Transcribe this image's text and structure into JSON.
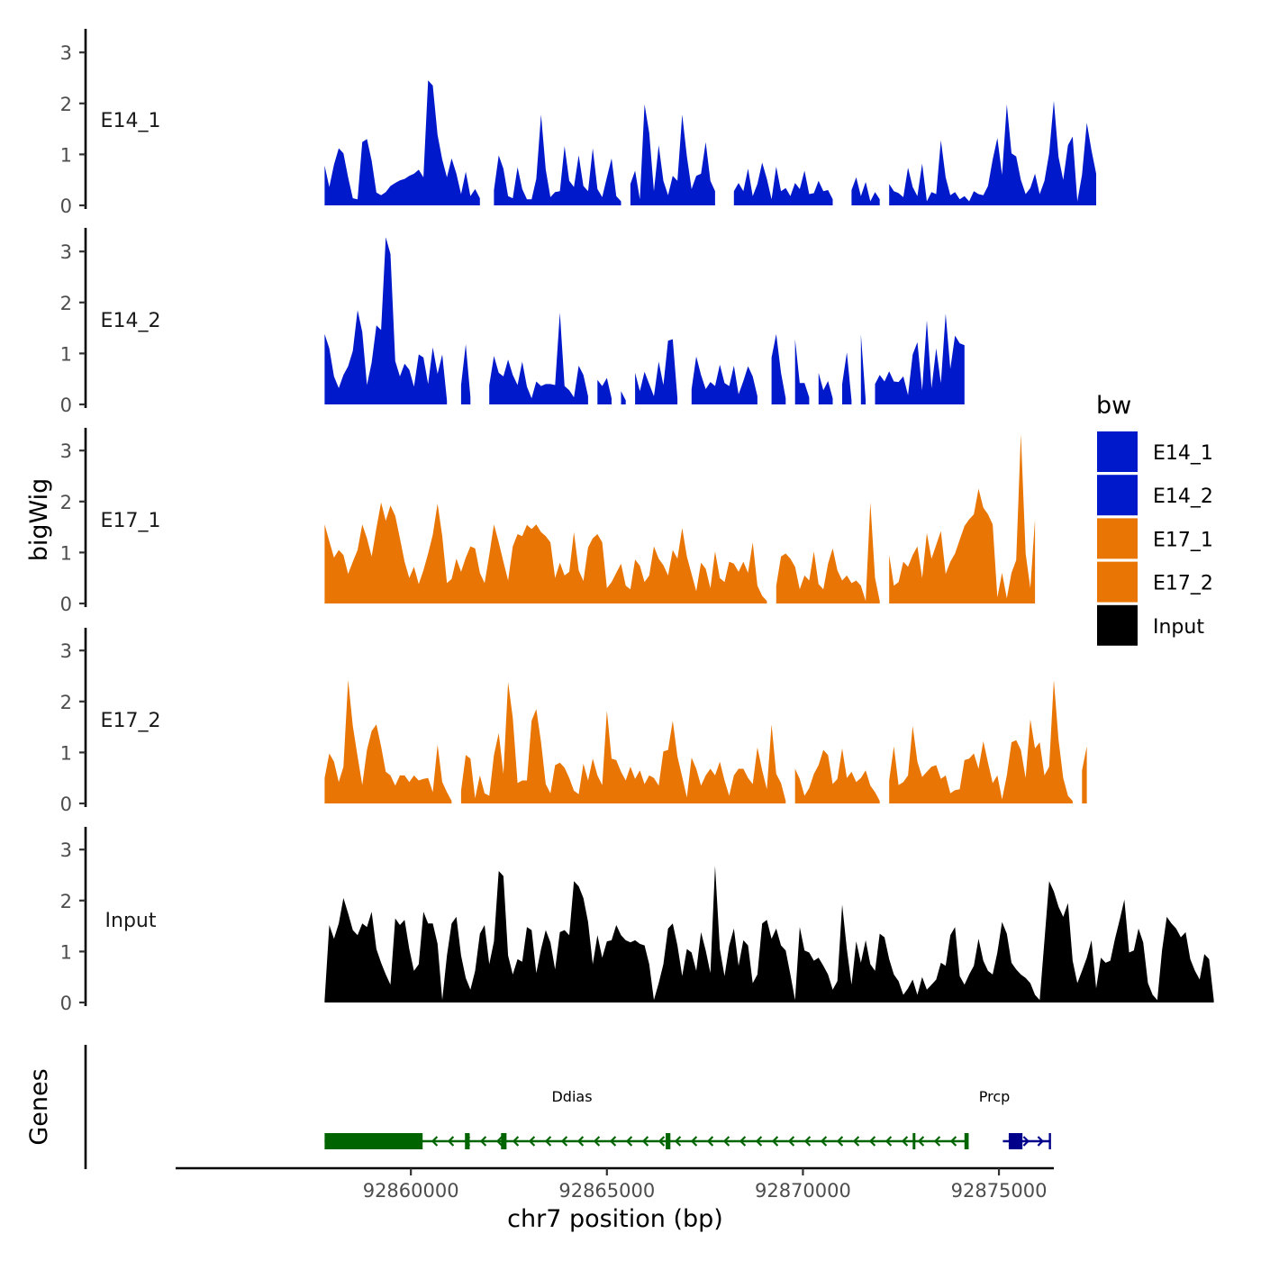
{
  "chart_data": {
    "type": "area",
    "title": "",
    "xlabel": "chr7 position (bp)",
    "ylabel": "bigWig",
    "genes_label": "Genes",
    "xlim": [
      92854000,
      92876400
    ],
    "ylim": [
      0,
      3.4
    ],
    "x_ticks": [
      92860000,
      92865000,
      92870000,
      92875000
    ],
    "x_tick_labels": [
      "92860000",
      "92865000",
      "92870000",
      "92875000"
    ],
    "y_ticks": [
      0,
      1,
      2,
      3
    ],
    "y_tick_labels": [
      "0",
      "1",
      "2",
      "3"
    ],
    "legend": {
      "title": "bw",
      "entries": [
        {
          "name": "E14_1",
          "color": "#0019CB"
        },
        {
          "name": "E14_2",
          "color": "#0019CB"
        },
        {
          "name": "E17_1",
          "color": "#E87504"
        },
        {
          "name": "E17_2",
          "color": "#E87504"
        },
        {
          "name": "Input",
          "color": "#000000"
        }
      ]
    },
    "x_start": 92857800,
    "x_step": 120,
    "series": [
      {
        "name": "E14_1",
        "color": "#0019CB",
        "values": [
          0.78,
          0.36,
          0.8,
          1.12,
          1.02,
          0.55,
          0.14,
          0.12,
          1.24,
          1.3,
          0.88,
          0.25,
          0.2,
          0.26,
          0.38,
          0.44,
          0.49,
          0.52,
          0.58,
          0.62,
          0.7,
          0.55,
          2.45,
          2.35,
          1.38,
          0.9,
          0.55,
          0.92,
          0.62,
          0.22,
          0.66,
          0.18,
          0.32,
          0.14,
          null,
          null,
          0.3,
          0.98,
          0.72,
          0.18,
          0.14,
          0.75,
          0.32,
          0.12,
          0.12,
          0.52,
          1.78,
          0.7,
          0.16,
          0.26,
          0.28,
          1.16,
          0.48,
          0.36,
          0.98,
          0.38,
          0.28,
          1.12,
          0.32,
          0.16,
          0.55,
          0.92,
          0.18,
          0.08,
          null,
          0.42,
          0.68,
          0.12,
          1.98,
          1.42,
          0.28,
          1.18,
          0.48,
          0.2,
          0.58,
          0.48,
          1.78,
          0.96,
          0.32,
          0.58,
          0.62,
          1.24,
          0.48,
          0.28,
          null,
          null,
          null,
          0.28,
          0.44,
          0.28,
          0.72,
          0.18,
          0.42,
          0.84,
          0.52,
          0.12,
          0.76,
          0.28,
          0.34,
          0.18,
          0.44,
          0.32,
          0.68,
          0.22,
          0.24,
          0.48,
          0.28,
          0.3,
          0.12,
          null,
          null,
          null,
          0.3,
          0.55,
          0.18,
          0.46,
          0.08,
          0.26,
          0.12,
          null,
          0.42,
          0.28,
          0.24,
          0.16,
          0.74,
          0.36,
          0.18,
          0.82,
          0.08,
          0.26,
          0.22,
          1.28,
          0.55,
          0.2,
          0.26,
          0.12,
          0.18,
          0.08,
          0.28,
          0.22,
          0.2,
          0.38,
          0.9,
          1.32,
          0.6,
          1.98,
          1.02,
          0.96,
          0.5,
          0.22,
          0.34,
          0.62,
          0.22,
          0.48,
          1.02,
          2.05,
          0.95,
          0.5,
          1.18,
          1.35,
          0.08,
          0.6,
          1.62,
          1.08,
          0.62
        ],
        "label": "E14_1"
      },
      {
        "name": "E14_2",
        "color": "#0019CB",
        "values": [
          1.38,
          1.1,
          0.55,
          0.32,
          0.58,
          0.75,
          1.05,
          1.85,
          1.42,
          0.38,
          0.82,
          1.55,
          1.46,
          3.28,
          2.95,
          0.85,
          0.55,
          0.8,
          0.68,
          0.35,
          0.98,
          0.92,
          0.4,
          1.12,
          0.6,
          0.98,
          0.08,
          null,
          null,
          0.38,
          1.18,
          0.14,
          null,
          null,
          null,
          0.38,
          0.95,
          0.62,
          0.55,
          0.88,
          0.58,
          0.38,
          0.84,
          0.35,
          0.12,
          0.45,
          0.36,
          0.4,
          0.4,
          0.38,
          1.8,
          0.36,
          0.28,
          0.14,
          0.76,
          0.58,
          0.16,
          null,
          0.48,
          0.36,
          0.52,
          0.12,
          null,
          0.26,
          0.08,
          null,
          0.62,
          0.26,
          0.64,
          0.4,
          0.16,
          0.84,
          0.38,
          1.25,
          1.28,
          0.12,
          null,
          null,
          0.3,
          0.94,
          0.58,
          0.3,
          0.44,
          0.36,
          0.78,
          0.42,
          0.36,
          0.76,
          0.2,
          0.46,
          0.75,
          0.55,
          0.16,
          null,
          null,
          0.92,
          1.38,
          0.62,
          0.12,
          null,
          1.28,
          0.42,
          0.42,
          0.14,
          null,
          0.62,
          0.28,
          0.46,
          0.12,
          null,
          0.4,
          1.02,
          0.08,
          null,
          1.38,
          0.08,
          null,
          0.4,
          0.58,
          0.45,
          0.65,
          0.45,
          0.44,
          0.55,
          0.18,
          0.98,
          1.22,
          0.28,
          1.65,
          0.32,
          1.1,
          0.42,
          1.78,
          0.7,
          1.35,
          1.2,
          1.16
        ],
        "label": "E14_2"
      },
      {
        "name": "E17_1",
        "color": "#E87504",
        "values": [
          1.55,
          1.22,
          0.9,
          1.05,
          0.95,
          0.58,
          0.82,
          1.05,
          1.55,
          1.28,
          0.92,
          1.48,
          1.98,
          1.62,
          1.92,
          1.72,
          1.28,
          0.82,
          0.5,
          0.72,
          0.38,
          0.65,
          0.98,
          1.35,
          1.96,
          1.32,
          0.4,
          0.48,
          0.88,
          0.62,
          0.9,
          1.12,
          1.08,
          0.6,
          0.4,
          0.95,
          1.55,
          1.2,
          0.82,
          0.45,
          1.12,
          1.36,
          1.32,
          1.54,
          1.46,
          1.55,
          1.4,
          1.32,
          1.2,
          0.5,
          0.8,
          0.55,
          0.62,
          1.4,
          0.65,
          0.44,
          1.1,
          1.28,
          1.36,
          1.2,
          0.3,
          0.42,
          0.6,
          0.78,
          0.35,
          0.28,
          0.86,
          0.74,
          0.42,
          0.55,
          1.12,
          0.88,
          0.75,
          0.55,
          1.05,
          0.88,
          1.48,
          0.92,
          0.58,
          0.24,
          0.8,
          0.68,
          0.3,
          1.02,
          0.5,
          0.42,
          0.82,
          0.78,
          0.62,
          0.82,
          0.6,
          1.2,
          0.35,
          0.15,
          0.05,
          null,
          0.35,
          0.92,
          0.98,
          0.88,
          0.72,
          0.28,
          0.55,
          0.45,
          1.02,
          0.38,
          0.28,
          0.78,
          1.08,
          0.65,
          0.45,
          0.55,
          0.4,
          0.45,
          0.35,
          0.05,
          1.98,
          0.5,
          0.05,
          null,
          0.95,
          0.35,
          0.42,
          0.82,
          0.72,
          0.95,
          1.12,
          0.5,
          1.38,
          0.88,
          1.15,
          1.42,
          0.58,
          0.82,
          0.98,
          1.25,
          1.52,
          1.65,
          1.75,
          2.25,
          1.88,
          1.75,
          1.55,
          0.12,
          0.6,
          0.1,
          0.6,
          0.85,
          3.32,
          0.98,
          0.3,
          1.65
        ],
        "label": "E17_1"
      },
      {
        "name": "E17_2",
        "color": "#E87504",
        "values": [
          0.5,
          0.98,
          0.82,
          0.42,
          0.72,
          2.42,
          1.52,
          0.92,
          0.36,
          1.05,
          1.42,
          1.55,
          1.12,
          0.62,
          0.55,
          0.35,
          0.55,
          0.55,
          0.42,
          0.55,
          0.45,
          0.48,
          0.5,
          0.22,
          1.15,
          0.42,
          0.22,
          0.05,
          null,
          0.25,
          0.95,
          0.88,
          0.1,
          0.55,
          0.2,
          0.15,
          0.95,
          1.38,
          0.58,
          2.38,
          1.68,
          0.4,
          0.45,
          0.45,
          1.62,
          1.85,
          1.2,
          0.38,
          0.2,
          0.75,
          0.8,
          0.7,
          0.5,
          0.25,
          0.18,
          0.78,
          0.45,
          0.88,
          0.55,
          0.36,
          1.82,
          0.88,
          0.85,
          0.62,
          0.45,
          0.72,
          0.48,
          0.65,
          0.38,
          0.55,
          0.5,
          0.35,
          1.02,
          1.05,
          1.62,
          0.92,
          0.52,
          0.12,
          0.9,
          0.68,
          0.35,
          0.55,
          0.68,
          0.55,
          0.82,
          0.45,
          0.15,
          0.55,
          0.68,
          0.68,
          0.5,
          0.38,
          1.1,
          0.65,
          0.28,
          1.55,
          0.58,
          0.4,
          0.05,
          null,
          0.68,
          0.48,
          0.15,
          0.3,
          0.58,
          0.75,
          1.05,
          0.95,
          0.38,
          0.48,
          1.08,
          0.5,
          0.62,
          0.42,
          0.5,
          0.65,
          0.35,
          0.22,
          0.05,
          null,
          0.45,
          1.12,
          0.36,
          0.42,
          0.55,
          1.52,
          0.82,
          0.52,
          0.62,
          0.72,
          0.75,
          0.48,
          0.55,
          0.2,
          0.26,
          0.28,
          0.85,
          0.88,
          0.98,
          0.68,
          1.22,
          0.8,
          0.4,
          0.55,
          0.08,
          0.55,
          1.2,
          1.24,
          1.05,
          0.5,
          1.65,
          1.08,
          1.2,
          0.55,
          0.72,
          2.42,
          1.25,
          0.5,
          0.15,
          0.05,
          null,
          0.65,
          1.12
        ]
      },
      {
        "name": "Input",
        "color": "#000000",
        "values": [
          0.05,
          1.52,
          1.25,
          1.55,
          2.05,
          1.75,
          1.42,
          1.32,
          1.55,
          1.48,
          1.78,
          1.05,
          0.78,
          0.55,
          0.35,
          1.65,
          1.52,
          1.62,
          1.05,
          0.62,
          0.75,
          1.78,
          1.55,
          1.55,
          1.15,
          0.05,
          0.92,
          1.55,
          1.68,
          0.92,
          0.48,
          0.25,
          0.62,
          1.35,
          1.52,
          0.75,
          1.2,
          2.58,
          2.48,
          0.92,
          0.55,
          0.85,
          0.8,
          1.48,
          1.42,
          0.58,
          1.05,
          1.42,
          1.18,
          0.65,
          1.38,
          1.42,
          1.32,
          2.38,
          2.28,
          2.05,
          1.58,
          0.75,
          1.32,
          0.88,
          1.2,
          1.22,
          1.52,
          1.32,
          1.22,
          1.18,
          1.22,
          1.15,
          1.12,
          0.75,
          0.05,
          0.38,
          0.75,
          1.45,
          1.55,
          1.12,
          0.52,
          1.05,
          0.98,
          0.62,
          1.38,
          1.02,
          0.58,
          2.68,
          1.05,
          0.52,
          1.12,
          1.45,
          0.72,
          1.22,
          1.12,
          0.38,
          0.55,
          1.55,
          1.62,
          1.25,
          1.45,
          1.12,
          1.02,
          0.55,
          0.05,
          1.48,
          1.02,
          0.98,
          0.82,
          0.88,
          0.72,
          0.55,
          0.25,
          0.42,
          1.92,
          1.05,
          0.35,
          1.2,
          0.78,
          1.22,
          0.75,
          0.62,
          1.35,
          1.28,
          0.85,
          0.55,
          0.42,
          0.15,
          0.28,
          0.45,
          0.15,
          0.5,
          0.25,
          0.35,
          0.45,
          0.78,
          0.72,
          1.32,
          1.48,
          0.52,
          0.35,
          0.55,
          0.72,
          1.25,
          0.82,
          0.62,
          0.55,
          0.98,
          1.58,
          1.35,
          0.78,
          0.65,
          0.55,
          0.48,
          0.38,
          0.15,
          0.05,
          1.22,
          2.38,
          2.18,
          1.88,
          1.68,
          1.95,
          0.82,
          0.38,
          0.62,
          0.88,
          1.22,
          0.28,
          0.88,
          0.78,
          0.82,
          1.25,
          1.62,
          2.02,
          0.98,
          1.02,
          1.45,
          1.18,
          0.38,
          0.15,
          0.05,
          1.02,
          1.68,
          1.55,
          1.45,
          1.28,
          1.38,
          0.85,
          0.62,
          0.45,
          0.95,
          0.85,
          0.05
        ]
      }
    ],
    "genes": [
      {
        "name": "Ddias",
        "strand": "-",
        "color": "#006400",
        "start": 92857800,
        "end": 92874200,
        "exons": [
          [
            92857800,
            92860300
          ],
          [
            92861380,
            92861500
          ],
          [
            92862300,
            92862440
          ],
          [
            92866500,
            92866620
          ],
          [
            92872800,
            92872860
          ],
          [
            92874120,
            92874200
          ]
        ]
      },
      {
        "name": "Prcp",
        "strand": "+",
        "color": "#00008B",
        "start": 92875100,
        "end": 92876300,
        "exons": [
          [
            92875250,
            92875600
          ]
        ]
      }
    ]
  }
}
